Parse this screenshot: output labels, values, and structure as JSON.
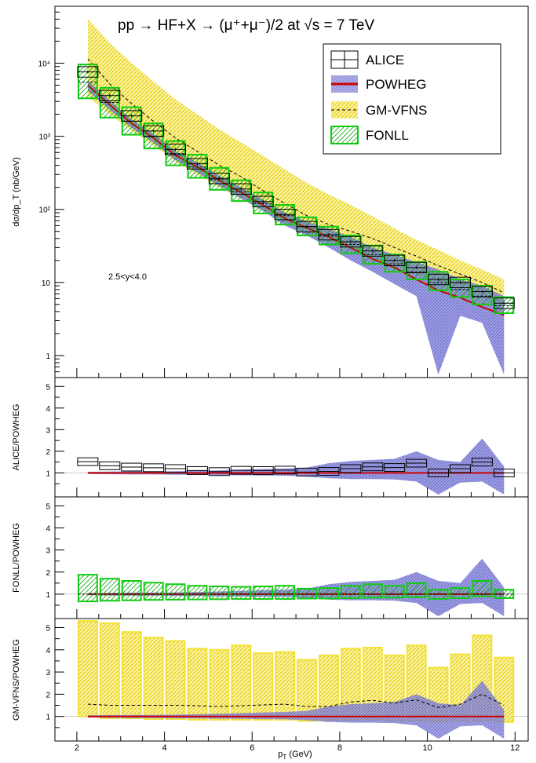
{
  "title": "pp → HF+X → (μ⁺+μ⁻)/2 at √s = 7 TeV",
  "colors": {
    "alice": "#000000",
    "powheg_band": "#6b6bd6",
    "powheg_line": "#cc0000",
    "gmvfns_band": "#f2e23a",
    "gmvfns_line": "#000000",
    "fonll": "#11cc11"
  },
  "chart_data": {
    "type": "line",
    "title": "pp → HF+X → (μ⁺+μ⁻)/2 at √s = 7 TeV",
    "xlabel": "p_T (GeV)",
    "xlim": [
      1.5,
      12.3
    ],
    "xticks": [
      "2",
      "4",
      "6",
      "8",
      "10",
      "12"
    ],
    "annotation": "2.5<y<4.0",
    "legend": {
      "placement": "top-right",
      "entries": [
        "ALICE",
        "POWHEG",
        "GM-VFNS",
        "FONLL"
      ]
    },
    "x": [
      2.25,
      2.75,
      3.25,
      3.75,
      4.25,
      4.75,
      5.25,
      5.75,
      6.25,
      6.75,
      7.25,
      7.75,
      8.25,
      8.75,
      9.25,
      9.75,
      10.25,
      10.75,
      11.25,
      11.75
    ],
    "bin_edges": [
      2.0,
      2.5,
      3.0,
      3.5,
      4.0,
      4.5,
      5.0,
      5.5,
      6.0,
      6.5,
      7.0,
      7.5,
      8.0,
      8.5,
      9.0,
      9.5,
      10.0,
      10.5,
      11.0,
      11.5,
      12.0
    ],
    "panels": [
      {
        "ylabel": "dσ/dp_T (nb/GeV)",
        "yscale": "log",
        "ylim": [
          0.5,
          60000
        ],
        "yticks": [
          "1",
          "10",
          "10²",
          "10³",
          "10⁴"
        ],
        "series": [
          {
            "name": "ALICE",
            "values": [
              7600,
              3600,
              1900,
              1180,
              660,
              420,
              265,
              190,
              128,
              85,
              58,
              45,
              36,
              27,
              20,
              16,
              11,
              10,
              7.5,
              5.2
            ]
          },
          {
            "name": "POWHEG",
            "values": [
              5000,
              2700,
              1500,
              950,
              550,
              380,
              250,
              170,
              115,
              75,
              56,
              42,
              30,
              21,
              16,
              11,
              7.8,
              6.2,
              4.6,
              3.6
            ],
            "band_low": [
              4200,
              2300,
              1300,
              820,
              470,
              320,
              210,
              140,
              95,
              60,
              44,
              30,
              20,
              14,
              9.5,
              6.5,
              0.55,
              3.5,
              2.8,
              0.55
            ],
            "band_high": [
              5800,
              3100,
              1700,
              1080,
              630,
              440,
              290,
              200,
              135,
              90,
              68,
              54,
              42,
              30,
              24,
              19,
              15,
              11,
              9,
              6.5
            ]
          },
          {
            "name": "GM-VFNS",
            "values": [
              11500,
              5200,
              2800,
              1600,
              950,
              620,
              400,
              280,
              180,
              120,
              82,
              62,
              50,
              40,
              30,
              23,
              17,
              13,
              10,
              7.2
            ],
            "band_low": [
              3500,
              2000,
              1200,
              760,
              450,
              300,
              200,
              140,
              95,
              65,
              46,
              36,
              28,
              22,
              17,
              13,
              10,
              8,
              6.5,
              5
            ],
            "band_high": [
              40000,
              19000,
              10000,
              5600,
              3200,
              2000,
              1250,
              820,
              540,
              350,
              230,
              160,
              115,
              80,
              55,
              38,
              28,
              20,
              15,
              11
            ]
          },
          {
            "name": "FONLL",
            "values": [
              5500,
              2900,
              1600,
              990,
              580,
              380,
              255,
              175,
              120,
              82,
              58,
              43,
              33,
              24,
              18,
              14,
              10,
              8,
              6.5,
              4.8
            ],
            "band_low": [
              3300,
              1800,
              1050,
              680,
              400,
              270,
              185,
              130,
              88,
              62,
              44,
              33,
              25,
              18,
              14,
              11,
              7.8,
              6.3,
              5,
              3.8
            ],
            "band_high": [
              9600,
              4600,
              2500,
              1500,
              860,
              560,
              370,
              250,
              170,
              115,
              78,
              58,
              44,
              32,
              24,
              19,
              14,
              11,
              9,
              6.3
            ]
          }
        ]
      },
      {
        "ylabel": "ALICE/POWHEG",
        "ylim": [
          0,
          5.3
        ],
        "yticks": [
          "1",
          "2",
          "3",
          "4",
          "5"
        ],
        "series": [
          {
            "name": "ALICE",
            "values": [
              1.52,
              1.33,
              1.27,
              1.24,
              1.2,
              1.11,
              1.06,
              1.12,
              1.11,
              1.13,
              1.04,
              1.07,
              1.2,
              1.28,
              1.25,
              1.45,
              1.0,
              1.2,
              1.5,
              1.0
            ]
          },
          {
            "name": "POWHEG",
            "band_low": [
              0.95,
              0.94,
              0.93,
              0.93,
              0.92,
              0.91,
              0.9,
              0.89,
              0.88,
              0.87,
              0.83,
              0.75,
              0.72,
              0.72,
              0.7,
              0.6,
              0.0,
              0.55,
              0.6,
              0.0
            ],
            "band_high": [
              1.05,
              1.06,
              1.07,
              1.07,
              1.08,
              1.1,
              1.12,
              1.15,
              1.18,
              1.2,
              1.25,
              1.45,
              1.55,
              1.6,
              1.65,
              2.0,
              1.6,
              1.5,
              2.6,
              1.3
            ]
          }
        ]
      },
      {
        "ylabel": "FONLL/POWHEG",
        "ylim": [
          0,
          5.3
        ],
        "yticks": [
          "1",
          "2",
          "3",
          "4",
          "5"
        ],
        "series": [
          {
            "name": "FONLL",
            "values": [
              1.25,
              1.2,
              1.15,
              1.12,
              1.1,
              1.06,
              1.05,
              1.05,
              1.07,
              1.08,
              1.02,
              1.03,
              1.1,
              1.15,
              1.1,
              1.2,
              1.0,
              1.05,
              1.35,
              1.0
            ],
            "band_low": [
              0.67,
              0.7,
              0.72,
              0.74,
              0.75,
              0.76,
              0.77,
              0.78,
              0.78,
              0.78,
              0.8,
              0.8,
              0.82,
              0.84,
              0.84,
              0.86,
              0.78,
              0.82,
              0.9,
              0.82
            ],
            "band_high": [
              1.88,
              1.7,
              1.6,
              1.52,
              1.45,
              1.38,
              1.35,
              1.33,
              1.35,
              1.38,
              1.25,
              1.28,
              1.38,
              1.45,
              1.38,
              1.5,
              1.2,
              1.28,
              1.6,
              1.2
            ]
          },
          {
            "name": "POWHEG",
            "band_low": [
              0.95,
              0.94,
              0.93,
              0.93,
              0.92,
              0.91,
              0.9,
              0.89,
              0.88,
              0.87,
              0.83,
              0.75,
              0.72,
              0.72,
              0.7,
              0.6,
              0.0,
              0.55,
              0.6,
              0.0
            ],
            "band_high": [
              1.05,
              1.06,
              1.07,
              1.07,
              1.08,
              1.1,
              1.12,
              1.15,
              1.18,
              1.2,
              1.25,
              1.45,
              1.55,
              1.6,
              1.65,
              2.0,
              1.6,
              1.5,
              2.6,
              1.3
            ]
          }
        ]
      },
      {
        "ylabel": "GM-VFNS/POWHEG",
        "ylim": [
          0,
          5.3
        ],
        "yticks": [
          "1",
          "2",
          "3",
          "4",
          "5"
        ],
        "series": [
          {
            "name": "GM-VFNS",
            "values": [
              1.55,
              1.5,
              1.5,
              1.5,
              1.5,
              1.48,
              1.45,
              1.48,
              1.52,
              1.55,
              1.45,
              1.45,
              1.65,
              1.72,
              1.6,
              1.75,
              1.4,
              1.55,
              2.0,
              1.5
            ],
            "band_low": [
              1.0,
              0.92,
              0.92,
              0.88,
              0.88,
              0.85,
              0.85,
              0.85,
              0.85,
              0.85,
              0.8,
              0.82,
              0.85,
              0.85,
              0.8,
              0.8,
              0.75,
              0.8,
              0.8,
              0.75
            ],
            "band_high": [
              5.3,
              5.2,
              4.8,
              4.55,
              4.4,
              4.05,
              4.0,
              4.2,
              3.85,
              3.9,
              3.55,
              3.75,
              4.05,
              4.1,
              3.75,
              4.2,
              3.2,
              3.8,
              4.65,
              3.65
            ]
          },
          {
            "name": "POWHEG",
            "band_low": [
              0.95,
              0.94,
              0.93,
              0.93,
              0.92,
              0.91,
              0.9,
              0.89,
              0.88,
              0.87,
              0.83,
              0.75,
              0.72,
              0.72,
              0.7,
              0.6,
              0.0,
              0.55,
              0.6,
              0.0
            ],
            "band_high": [
              1.05,
              1.06,
              1.07,
              1.07,
              1.08,
              1.1,
              1.12,
              1.15,
              1.18,
              1.2,
              1.25,
              1.45,
              1.55,
              1.6,
              1.65,
              2.0,
              1.6,
              1.5,
              2.6,
              1.3
            ]
          }
        ]
      }
    ]
  }
}
